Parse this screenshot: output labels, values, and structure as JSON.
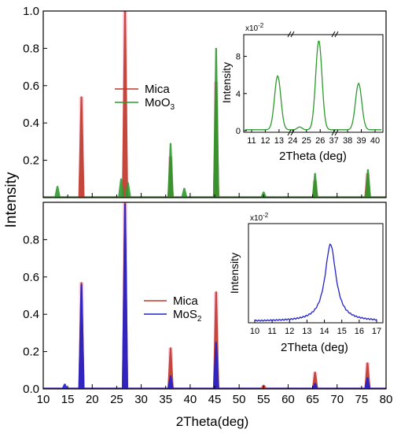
{
  "figure": {
    "shared_ylabel": "Intensity",
    "shared_xlabel": "2Theta(deg)",
    "colors": {
      "mica": "#c0392b",
      "moo3": "#2e9a2e",
      "mos2": "#2222cc",
      "halo": "#f7a8c8",
      "axis": "#000000"
    }
  },
  "chart_data": [
    {
      "type": "line",
      "panel": "top",
      "xlim": [
        10,
        80
      ],
      "ylim": [
        0,
        1.0
      ],
      "yticks": [
        "0.2",
        "0.4",
        "0.6",
        "0.8",
        "1.0"
      ],
      "ytick_values": [
        0.2,
        0.4,
        0.6,
        0.8,
        1.0
      ],
      "legend": [
        "Mica",
        "MoO3"
      ],
      "legend_placement": "center-left",
      "series": [
        {
          "name": "Mica",
          "peaks": [
            [
              17.8,
              0.54
            ],
            [
              26.7,
              1.0
            ],
            [
              36.0,
              0.22
            ],
            [
              45.3,
              0.62
            ],
            [
              55.0,
              0.01
            ],
            [
              65.5,
              0.09
            ],
            [
              76.2,
              0.13
            ]
          ]
        },
        {
          "name": "MoO3",
          "peaks": [
            [
              12.9,
              0.06
            ],
            [
              25.9,
              0.1
            ],
            [
              27.3,
              0.08
            ],
            [
              36.0,
              0.29
            ],
            [
              38.8,
              0.05
            ],
            [
              45.3,
              0.8
            ],
            [
              55.0,
              0.03
            ],
            [
              65.5,
              0.13
            ],
            [
              76.3,
              0.15
            ]
          ]
        }
      ]
    },
    {
      "type": "line",
      "panel": "top-inset",
      "xtick_labels": [
        "11",
        "12",
        "13",
        "24",
        "25",
        "26",
        "37",
        "38",
        "39",
        "40"
      ],
      "ylim": [
        0,
        10
      ],
      "yticks": [
        "0",
        "4",
        "8"
      ],
      "ytick_values": [
        0,
        4,
        8
      ],
      "scale_label": "x10",
      "scale_exp": "-2",
      "xlabel": "2Theta (deg)",
      "ylabel": "Intensity",
      "series": [
        {
          "name": "MoO3",
          "peaks": [
            [
              12.9,
              5.8
            ],
            [
              24.5,
              0.3
            ],
            [
              25.9,
              9.6
            ],
            [
              38.8,
              5.0
            ]
          ]
        }
      ]
    },
    {
      "type": "line",
      "panel": "bottom",
      "xlim": [
        10,
        80
      ],
      "ylim": [
        0,
        1.0
      ],
      "xticks": [
        "10",
        "15",
        "20",
        "25",
        "30",
        "35",
        "40",
        "45",
        "50",
        "55",
        "60",
        "65",
        "70",
        "75",
        "80"
      ],
      "xtick_values": [
        10,
        15,
        20,
        25,
        30,
        35,
        40,
        45,
        50,
        55,
        60,
        65,
        70,
        75,
        80
      ],
      "yticks": [
        "0.0",
        "0.2",
        "0.4",
        "0.6",
        "0.8"
      ],
      "ytick_values": [
        0.0,
        0.2,
        0.4,
        0.6,
        0.8
      ],
      "legend": [
        "Mica",
        "MoS2"
      ],
      "legend_placement": "center",
      "series": [
        {
          "name": "Mica",
          "peaks": [
            [
              17.8,
              0.57
            ],
            [
              26.7,
              1.0
            ],
            [
              36.0,
              0.22
            ],
            [
              45.3,
              0.52
            ],
            [
              55.0,
              0.02
            ],
            [
              65.5,
              0.09
            ],
            [
              76.2,
              0.14
            ]
          ]
        },
        {
          "name": "MoS2",
          "peaks": [
            [
              14.4,
              0.026
            ],
            [
              17.8,
              0.56
            ],
            [
              26.7,
              0.99
            ],
            [
              36.0,
              0.07
            ],
            [
              45.3,
              0.25
            ],
            [
              65.5,
              0.03
            ],
            [
              76.2,
              0.06
            ]
          ]
        }
      ]
    },
    {
      "type": "line",
      "panel": "bottom-inset",
      "xlim": [
        10,
        17
      ],
      "ylim": [
        0,
        3.2
      ],
      "xticks": [
        "10",
        "11",
        "12",
        "13",
        "14",
        "15",
        "16",
        "17"
      ],
      "xtick_values": [
        10,
        11,
        12,
        13,
        14,
        15,
        16,
        17
      ],
      "scale_label": "x10",
      "scale_exp": "-2",
      "xlabel": "2Theta (deg)",
      "ylabel": "Intensity",
      "series": [
        {
          "name": "MoS2",
          "peaks": [
            [
              14.35,
              2.65
            ]
          ]
        }
      ]
    }
  ]
}
